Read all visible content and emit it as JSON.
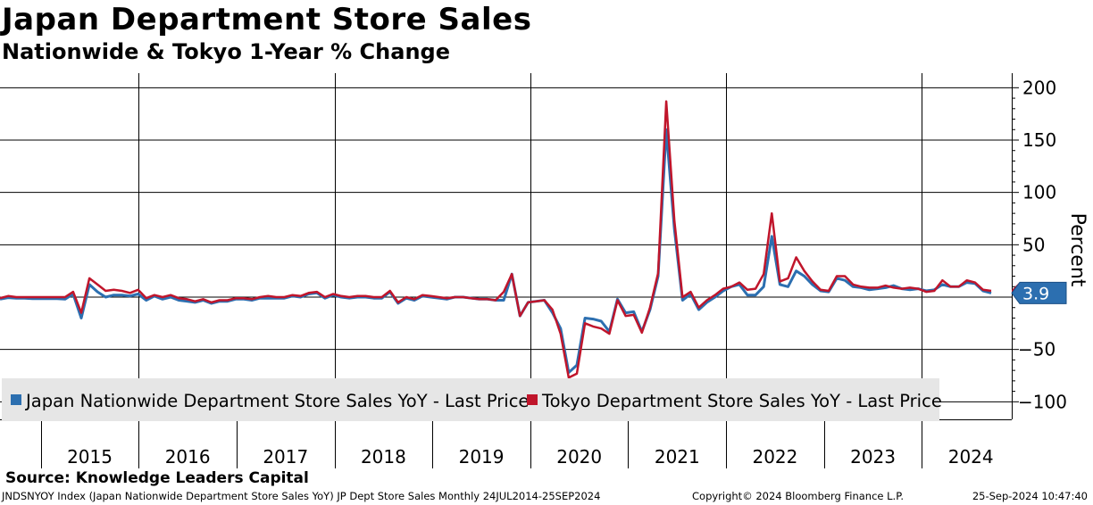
{
  "chart_data": {
    "type": "line",
    "title": "Japan Department Store Sales",
    "subtitle": "Nationwide & Tokyo 1-Year % Change",
    "ylabel": "Percent",
    "ylim": [
      -100,
      200
    ],
    "yticks": [
      200,
      150,
      100,
      50,
      -50,
      -100
    ],
    "xlabel": "",
    "x_start": 2014.583,
    "x_end": 2024.708,
    "year_labels": [
      "2015",
      "2016",
      "2017",
      "2018",
      "2019",
      "2020",
      "2021",
      "2022",
      "2023",
      "2024"
    ],
    "last_value_label": "3.9",
    "legend_position": "bottom-left",
    "series": [
      {
        "name": "Japan Nationwide Department Store Sales YoY - Last Price",
        "color": "#2c6fb0",
        "values": [
          -2,
          -0.5,
          -1,
          -1,
          -1.5,
          -1.5,
          -1.5,
          -1.5,
          -2,
          3,
          -20,
          12,
          5,
          0,
          2,
          2,
          1,
          3,
          -3,
          1,
          -2,
          0,
          -3,
          -4,
          -5,
          -3,
          -6,
          -4,
          -4,
          -2,
          -2,
          -3,
          -1,
          -1,
          -1,
          -1,
          1,
          0,
          3,
          4,
          -1,
          2,
          0,
          -1,
          0,
          0,
          -1,
          -1,
          5,
          -6,
          -1,
          -3,
          1,
          0,
          -1,
          -2,
          0,
          0,
          -1,
          -2,
          -2,
          -3,
          -3,
          22,
          -18,
          -5,
          -4,
          -3,
          -15,
          -30,
          -72,
          -65,
          -20,
          -21,
          -23,
          -33,
          -2,
          -15,
          -14,
          -33,
          -12,
          20,
          160,
          65,
          -3,
          3,
          -12,
          -5,
          0,
          6,
          10,
          12,
          2,
          2,
          10,
          58,
          12,
          10,
          25,
          20,
          12,
          6,
          5,
          18,
          16,
          10,
          9,
          7,
          8,
          9,
          11,
          8,
          7,
          8,
          6,
          7,
          12,
          10,
          10,
          14,
          13,
          6,
          3.9
        ]
      },
      {
        "name": "Tokyo Department Store Sales YoY - Last Price",
        "color": "#c0152b",
        "values": [
          -1,
          1,
          0,
          0,
          0,
          0,
          0,
          0,
          0,
          5,
          -15,
          18,
          12,
          6,
          7,
          6,
          4,
          7,
          -1,
          2,
          0,
          2,
          -1,
          -2,
          -4,
          -2,
          -5,
          -3,
          -3,
          -1,
          -1,
          -2,
          0,
          1,
          0,
          0,
          2,
          1,
          4,
          5,
          0,
          3,
          1,
          0,
          1,
          1,
          0,
          0,
          6,
          -5,
          0,
          -2,
          2,
          1,
          0,
          -1,
          0,
          0,
          -1,
          -2,
          -2,
          -3,
          5,
          22,
          -18,
          -5,
          -4,
          -3,
          -12,
          -35,
          -77,
          -73,
          -25,
          -28,
          -30,
          -35,
          -3,
          -18,
          -17,
          -34,
          -10,
          23,
          187,
          73,
          0,
          5,
          -10,
          -3,
          2,
          8,
          10,
          14,
          7,
          8,
          22,
          80,
          15,
          18,
          38,
          25,
          15,
          7,
          6,
          20,
          20,
          12,
          10,
          9,
          9,
          11,
          9,
          8,
          9,
          8,
          5,
          6,
          16,
          10,
          10,
          16,
          14,
          7,
          6
        ]
      }
    ]
  },
  "footer": {
    "source": "Source: Knowledge Leaders Capital",
    "left": "JNDSNYOY Index (Japan Nationwide Department Store Sales YoY) JP Dept Store Sales  Monthly 24JUL2014-25SEP2024",
    "middle": "Copyright© 2024 Bloomberg Finance L.P.",
    "right": "25-Sep-2024 10:47:40"
  }
}
